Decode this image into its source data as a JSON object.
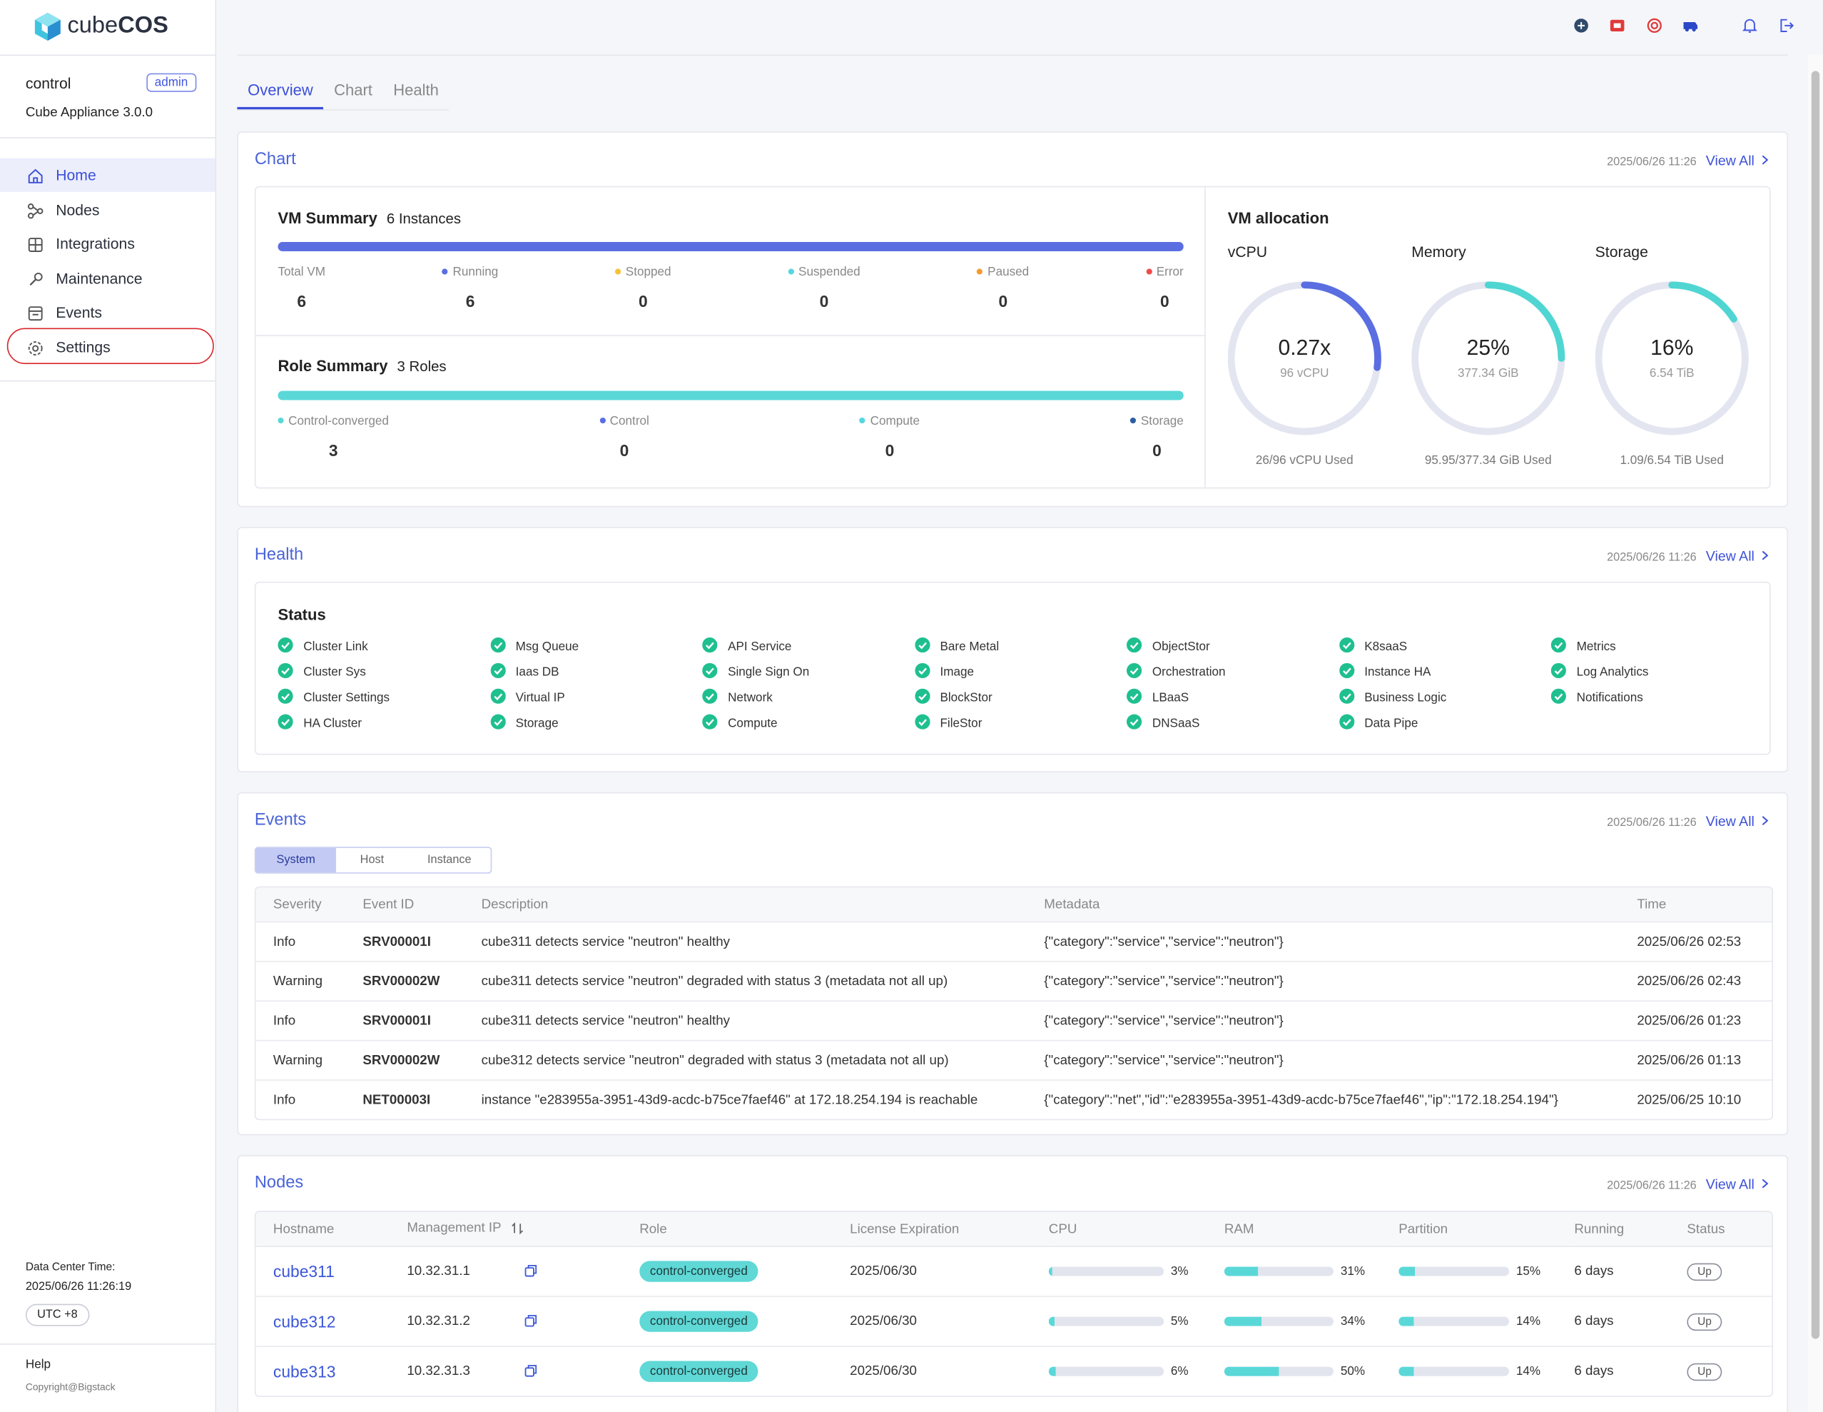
{
  "sidebar": {
    "brand": [
      "cube",
      "COS"
    ],
    "user": "control",
    "role": "admin",
    "version": "Cube Appliance 3.0.0",
    "menu": [
      {
        "label": "Home",
        "active": true
      },
      {
        "label": "Nodes"
      },
      {
        "label": "Integrations"
      },
      {
        "label": "Maintenance"
      },
      {
        "label": "Events"
      },
      {
        "label": "Settings",
        "circled": true
      }
    ],
    "datacenter_time_label": "Data Center Time:",
    "datacenter_time": "2025/06/26 11:26:19",
    "timezone": "UTC +8",
    "help": "Help",
    "copyright": "Copyright@Bigstack"
  },
  "tabs": [
    {
      "label": "Overview",
      "active": true
    },
    {
      "label": "Chart"
    },
    {
      "label": "Health"
    }
  ],
  "chart": {
    "title": "Chart",
    "timestamp": "2025/06/26 11:26",
    "view_all": "View All",
    "vm_summary": {
      "title": "VM Summary",
      "count": "6 Instances",
      "total": {
        "label": "Total VM",
        "value": 6
      },
      "stats": [
        {
          "label": "Running",
          "value": 6,
          "color": "#5b6ee1"
        },
        {
          "label": "Stopped",
          "value": 0,
          "color": "#f4c23a"
        },
        {
          "label": "Suspended",
          "value": 0,
          "color": "#56d6e0"
        },
        {
          "label": "Paused",
          "value": 0,
          "color": "#f59a2f"
        },
        {
          "label": "Error",
          "value": 0,
          "color": "#ef4b4b"
        }
      ]
    },
    "role_summary": {
      "title": "Role Summary",
      "count": "3 Roles",
      "stats": [
        {
          "label": "Control-converged",
          "value": 3,
          "color": "#5ad8d8"
        },
        {
          "label": "Control",
          "value": 0,
          "color": "#5b6ee1"
        },
        {
          "label": "Compute",
          "value": 0,
          "color": "#56d6e0"
        },
        {
          "label": "Storage",
          "value": 0,
          "color": "#2c5fa0"
        }
      ]
    },
    "vm_allocation": {
      "title": "VM allocation",
      "gauges": [
        {
          "label": "vCPU",
          "value": 0.27,
          "value_label": "0.27x",
          "max": 1,
          "capacity": "96 vCPU",
          "usage": "26/96 vCPU Used",
          "color": "#5b6ee1"
        },
        {
          "label": "Memory",
          "value": 25,
          "value_label": "25%",
          "max": 100,
          "capacity": "377.34 GiB",
          "usage": "95.95/377.34 GiB Used",
          "color": "#4fd6d2"
        },
        {
          "label": "Storage",
          "value": 16,
          "value_label": "16%",
          "max": 100,
          "capacity": "6.54 TiB",
          "usage": "1.09/6.54 TiB Used",
          "color": "#4fd6d2"
        }
      ]
    }
  },
  "health": {
    "title": "Health",
    "timestamp": "2025/06/26 11:26",
    "view_all": "View All",
    "status_title": "Status",
    "columns": [
      [
        "Cluster Link",
        "Cluster Sys",
        "Cluster Settings",
        "HA Cluster"
      ],
      [
        "Msg Queue",
        "Iaas DB",
        "Virtual IP",
        "Storage"
      ],
      [
        "API Service",
        "Single Sign On",
        "Network",
        "Compute"
      ],
      [
        "Bare Metal",
        "Image",
        "BlockStor",
        "FileStor"
      ],
      [
        "ObjectStor",
        "Orchestration",
        "LBaaS",
        "DNSaaS"
      ],
      [
        "K8saaS",
        "Instance HA",
        "Business Logic",
        "Data Pipe"
      ],
      [
        "Metrics",
        "Log Analytics",
        "Notifications"
      ]
    ]
  },
  "events": {
    "title": "Events",
    "timestamp": "2025/06/26 11:26",
    "view_all": "View All",
    "filters": [
      {
        "label": "System",
        "active": true
      },
      {
        "label": "Host"
      },
      {
        "label": "Instance"
      }
    ],
    "columns": [
      "Severity",
      "Event ID",
      "Description",
      "Metadata",
      "Time"
    ],
    "rows": [
      [
        "Info",
        "SRV00001I",
        "cube311 detects service \"neutron\" healthy",
        "{\"category\":\"service\",\"service\":\"neutron\"}",
        "2025/06/26 02:53"
      ],
      [
        "Warning",
        "SRV00002W",
        "cube311 detects service \"neutron\" degraded with status 3 (metadata not all up)",
        "{\"category\":\"service\",\"service\":\"neutron\"}",
        "2025/06/26 02:43"
      ],
      [
        "Info",
        "SRV00001I",
        "cube311 detects service \"neutron\" healthy",
        "{\"category\":\"service\",\"service\":\"neutron\"}",
        "2025/06/26 01:23"
      ],
      [
        "Warning",
        "SRV00002W",
        "cube312 detects service \"neutron\" degraded with status 3 (metadata not all up)",
        "{\"category\":\"service\",\"service\":\"neutron\"}",
        "2025/06/26 01:13"
      ],
      [
        "Info",
        "NET00003I",
        "instance \"e283955a-3951-43d9-acdc-b75ce7faef46\" at 172.18.254.194 is reachable",
        "{\"category\":\"net\",\"id\":\"e283955a-3951-43d9-acdc-b75ce7faef46\",\"ip\":\"172.18.254.194\"}",
        "2025/06/25 10:10"
      ]
    ]
  },
  "nodes": {
    "title": "Nodes",
    "timestamp": "2025/06/26 11:26",
    "view_all": "View All",
    "columns": [
      "Hostname",
      "Management IP",
      "Role",
      "License Expiration",
      "CPU",
      "RAM",
      "Partition",
      "Running",
      "Status"
    ],
    "bar_max": 100,
    "rows": [
      {
        "hostname": "cube311",
        "ip": "10.32.31.1",
        "role": "control-converged",
        "license": "2025/06/30",
        "cpu": 3,
        "cpu_label": "3%",
        "ram": 31,
        "ram_label": "31%",
        "partition": 15,
        "partition_label": "15%",
        "running": "6 days",
        "status": "Up"
      },
      {
        "hostname": "cube312",
        "ip": "10.32.31.2",
        "role": "control-converged",
        "license": "2025/06/30",
        "cpu": 5,
        "cpu_label": "5%",
        "ram": 34,
        "ram_label": "34%",
        "partition": 14,
        "partition_label": "14%",
        "running": "6 days",
        "status": "Up"
      },
      {
        "hostname": "cube313",
        "ip": "10.32.31.3",
        "role": "control-converged",
        "license": "2025/06/30",
        "cpu": 6,
        "cpu_label": "6%",
        "ram": 50,
        "ram_label": "50%",
        "partition": 14,
        "partition_label": "14%",
        "running": "6 days",
        "status": "Up"
      }
    ]
  }
}
